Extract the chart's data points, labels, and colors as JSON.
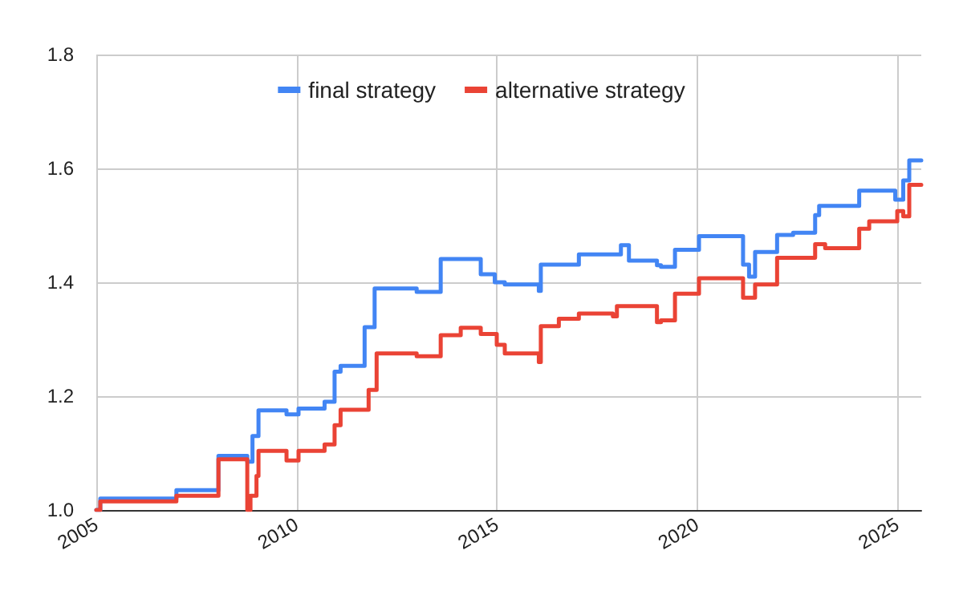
{
  "chart_data": {
    "type": "step",
    "series": [
      {
        "name": "final strategy",
        "color": "#4285f4",
        "x": [
          2005,
          2005.1,
          2007.0,
          2008.05,
          2008.77,
          2008.9,
          2009.05,
          2009.75,
          2010.05,
          2010.7,
          2010.95,
          2011.1,
          2011.7,
          2011.95,
          2013.0,
          2013.6,
          2014.6,
          2014.95,
          2015.2,
          2016.05,
          2016.1,
          2017.05,
          2018.1,
          2018.3,
          2019.0,
          2019.1,
          2019.45,
          2020.05,
          2021.15,
          2021.3,
          2021.45,
          2022.0,
          2022.4,
          2022.95,
          2023.05,
          2024.05,
          2024.95,
          2025.15,
          2025.3,
          2025.6
        ],
        "values": [
          1.0,
          1.02,
          1.035,
          1.095,
          1.085,
          1.13,
          1.175,
          1.168,
          1.178,
          1.19,
          1.243,
          1.253,
          1.321,
          1.389,
          1.383,
          1.441,
          1.414,
          1.4,
          1.396,
          1.385,
          1.431,
          1.449,
          1.465,
          1.438,
          1.43,
          1.427,
          1.457,
          1.481,
          1.431,
          1.41,
          1.453,
          1.483,
          1.487,
          1.518,
          1.534,
          1.561,
          1.545,
          1.579,
          1.614,
          1.614
        ]
      },
      {
        "name": "alternative strategy",
        "color": "#ea4335",
        "x": [
          2005,
          2005.1,
          2007.0,
          2008.05,
          2008.77,
          2008.85,
          2009.0,
          2009.05,
          2009.75,
          2010.05,
          2010.7,
          2010.95,
          2011.1,
          2011.8,
          2012.0,
          2013.0,
          2013.6,
          2014.1,
          2014.6,
          2015.0,
          2015.2,
          2016.05,
          2016.1,
          2016.55,
          2017.05,
          2017.9,
          2018.0,
          2019.0,
          2019.1,
          2019.45,
          2020.05,
          2021.15,
          2021.45,
          2022.0,
          2022.95,
          2023.2,
          2024.05,
          2024.3,
          2025.0,
          2025.15,
          2025.3,
          2025.6
        ],
        "values": [
          1.0,
          1.015,
          1.025,
          1.089,
          1.0,
          1.025,
          1.06,
          1.104,
          1.087,
          1.104,
          1.115,
          1.149,
          1.176,
          1.211,
          1.275,
          1.27,
          1.307,
          1.32,
          1.309,
          1.29,
          1.275,
          1.26,
          1.323,
          1.336,
          1.345,
          1.34,
          1.358,
          1.33,
          1.333,
          1.38,
          1.407,
          1.373,
          1.396,
          1.443,
          1.467,
          1.46,
          1.494,
          1.507,
          1.525,
          1.516,
          1.571,
          1.571
        ]
      }
    ],
    "xlim": [
      2005,
      2025.6
    ],
    "xticks": [
      2005,
      2010,
      2015,
      2020,
      2025
    ],
    "ylim": [
      1,
      1.8
    ],
    "yticks": [
      {
        "value": 1,
        "label": "1.0"
      },
      {
        "value": 1.2,
        "label": "1.2"
      },
      {
        "value": 1.4,
        "label": "1.4"
      },
      {
        "value": 1.6,
        "label": "1.6"
      },
      {
        "value": 1.8,
        "label": "1.8"
      }
    ],
    "grid": true,
    "legend": "top",
    "marker": "none",
    "line_style": "solid"
  }
}
